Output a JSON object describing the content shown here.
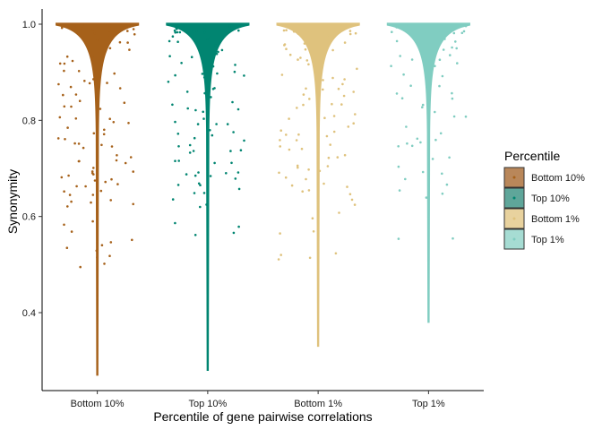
{
  "chart_data": {
    "type": "violin-jitter",
    "title": "",
    "xlabel": "Percentile of gene pairwise correlations",
    "ylabel": "Synonymity",
    "ylim": [
      0.27,
      1.03
    ],
    "yticks": [
      0.4,
      0.6,
      0.8,
      1.0
    ],
    "ytick_labels": [
      "0.4",
      "0.6",
      "0.8",
      "1.0"
    ],
    "grid": false,
    "legend": {
      "title": "Percentile",
      "position": "right",
      "entries": [
        "Bottom 10%",
        "Top 10%",
        "Bottom 1%",
        "Top 1%"
      ]
    },
    "categories": [
      "Bottom 10%",
      "Top 10%",
      "Bottom 1%",
      "Top 1%"
    ],
    "series": [
      {
        "name": "Bottom 10%",
        "color": "#A6611A",
        "fill": "#B9875A",
        "min": 0.27,
        "max": 1.0,
        "points": [
          0.53,
          0.59,
          0.5,
          0.51,
          0.54,
          0.56,
          0.62,
          0.63,
          0.64,
          0.65,
          0.66,
          0.67,
          0.67,
          0.68,
          0.68,
          0.69,
          0.7,
          0.71,
          0.72,
          0.73,
          0.74,
          0.75,
          0.76,
          0.77,
          0.78,
          0.79,
          0.8,
          0.81,
          0.82,
          0.83,
          0.84,
          0.85,
          0.86,
          0.87,
          0.88,
          0.89,
          0.9,
          0.91,
          0.92,
          0.93,
          0.94,
          0.95,
          0.96,
          0.97,
          0.98,
          0.99,
          0.99,
          1.0
        ]
      },
      {
        "name": "Top 10%",
        "color": "#018571",
        "fill": "#5FA69A",
        "min": 0.28,
        "max": 1.0,
        "points": [
          0.56,
          0.58,
          0.62,
          0.64,
          0.65,
          0.66,
          0.67,
          0.68,
          0.69,
          0.7,
          0.71,
          0.72,
          0.73,
          0.74,
          0.75,
          0.76,
          0.77,
          0.78,
          0.79,
          0.8,
          0.81,
          0.82,
          0.83,
          0.84,
          0.85,
          0.86,
          0.87,
          0.88,
          0.89,
          0.9,
          0.91,
          0.92,
          0.93,
          0.94,
          0.95,
          0.96,
          0.97,
          0.98,
          0.99,
          0.99,
          1.0
        ]
      },
      {
        "name": "Bottom 1%",
        "color": "#DFC27D",
        "fill": "#E8D29E",
        "min": 0.33,
        "max": 1.0,
        "points": [
          0.51,
          0.52,
          0.57,
          0.6,
          0.63,
          0.65,
          0.66,
          0.67,
          0.68,
          0.69,
          0.7,
          0.71,
          0.72,
          0.73,
          0.74,
          0.75,
          0.76,
          0.77,
          0.78,
          0.79,
          0.8,
          0.81,
          0.82,
          0.83,
          0.84,
          0.85,
          0.86,
          0.87,
          0.88,
          0.89,
          0.9,
          0.91,
          0.92,
          0.93,
          0.94,
          0.95,
          0.96,
          0.97,
          0.98,
          0.99,
          0.99,
          1.0
        ]
      },
      {
        "name": "Top 1%",
        "color": "#80CDC1",
        "fill": "#A6DCD3",
        "min": 0.38,
        "max": 1.0,
        "points": [
          0.56,
          0.64,
          0.66,
          0.68,
          0.7,
          0.72,
          0.74,
          0.75,
          0.76,
          0.78,
          0.8,
          0.82,
          0.84,
          0.85,
          0.86,
          0.88,
          0.9,
          0.91,
          0.92,
          0.93,
          0.94,
          0.95,
          0.96,
          0.97,
          0.98,
          0.99,
          0.99,
          1.0
        ]
      }
    ]
  }
}
